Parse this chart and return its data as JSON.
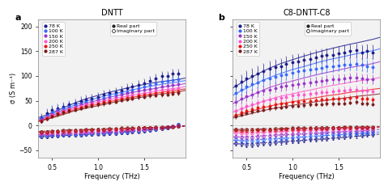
{
  "title_a": "DNTT",
  "title_b": "C8-DNTT-C8",
  "xlabel": "Frequency (THz)",
  "ylabel": "σ (S m⁻¹)",
  "label_a": "a",
  "label_b": "b",
  "ylim": [
    -65,
    215
  ],
  "xlim": [
    0.35,
    1.95
  ],
  "yticks": [
    -50,
    0,
    50,
    100,
    150,
    200
  ],
  "xticks": [
    0.5,
    1.0,
    1.5
  ],
  "temperatures": [
    "78 K",
    "100 K",
    "150 K",
    "200 K",
    "250 K",
    "287 K"
  ],
  "colors": [
    "#1a1a8c",
    "#3366ff",
    "#9933cc",
    "#ff55cc",
    "#ee1111",
    "#7a1a1a"
  ],
  "freq_points": [
    0.38,
    0.44,
    0.5,
    0.56,
    0.62,
    0.68,
    0.75,
    0.81,
    0.87,
    0.93,
    1.0,
    1.06,
    1.12,
    1.19,
    1.25,
    1.31,
    1.37,
    1.44,
    1.5,
    1.56,
    1.62,
    1.69,
    1.75,
    1.81,
    1.87
  ],
  "freq_fit": [
    0.35,
    0.45,
    0.55,
    0.65,
    0.75,
    0.87,
    1.0,
    1.12,
    1.25,
    1.37,
    1.5,
    1.62,
    1.75,
    1.87,
    1.95
  ],
  "panel_a": {
    "real_data": [
      [
        15,
        25,
        31,
        35,
        38,
        42,
        45,
        50,
        52,
        55,
        58,
        62,
        65,
        68,
        70,
        75,
        78,
        82,
        85,
        90,
        95,
        100,
        100,
        105,
        105
      ],
      [
        13,
        20,
        27,
        32,
        35,
        38,
        41,
        45,
        48,
        50,
        53,
        56,
        60,
        63,
        65,
        68,
        72,
        75,
        78,
        82,
        85,
        88,
        90,
        92,
        93
      ],
      [
        12,
        18,
        24,
        29,
        32,
        35,
        38,
        42,
        45,
        48,
        51,
        53,
        56,
        58,
        62,
        65,
        68,
        70,
        72,
        74,
        76,
        78,
        80,
        82,
        83
      ],
      [
        10,
        16,
        22,
        27,
        30,
        33,
        36,
        39,
        42,
        44,
        47,
        50,
        52,
        55,
        57,
        60,
        62,
        64,
        66,
        68,
        70,
        72,
        73,
        74,
        75
      ],
      [
        10,
        15,
        20,
        25,
        28,
        31,
        34,
        37,
        40,
        42,
        44,
        47,
        49,
        51,
        54,
        56,
        58,
        60,
        62,
        63,
        65,
        66,
        67,
        68,
        69
      ],
      [
        9,
        14,
        19,
        23,
        26,
        29,
        32,
        35,
        38,
        40,
        42,
        44,
        46,
        48,
        51,
        53,
        55,
        57,
        58,
        60,
        61,
        62,
        63,
        64,
        65
      ]
    ],
    "imag_data": [
      [
        -22,
        -22,
        -21,
        -21,
        -20,
        -20,
        -19,
        -19,
        -18,
        -18,
        -17,
        -17,
        -16,
        -16,
        -15,
        -14,
        -13,
        -12,
        -11,
        -10,
        -8,
        -6,
        -4,
        -2,
        2
      ],
      [
        -20,
        -20,
        -19,
        -19,
        -18,
        -18,
        -17,
        -17,
        -16,
        -16,
        -15,
        -15,
        -14,
        -14,
        -13,
        -12,
        -11,
        -10,
        -9,
        -8,
        -7,
        -5,
        -3,
        -1,
        2
      ],
      [
        -18,
        -18,
        -17,
        -17,
        -16,
        -16,
        -15,
        -15,
        -14,
        -14,
        -13,
        -13,
        -12,
        -12,
        -11,
        -10,
        -9,
        -8,
        -7,
        -6,
        -5,
        -4,
        -3,
        -2,
        0
      ],
      [
        -16,
        -16,
        -15,
        -15,
        -14,
        -14,
        -13,
        -13,
        -12,
        -12,
        -11,
        -11,
        -10,
        -10,
        -9,
        -8,
        -8,
        -7,
        -7,
        -6,
        -5,
        -4,
        -3,
        -2,
        -1
      ],
      [
        -14,
        -14,
        -13,
        -13,
        -12,
        -12,
        -11,
        -11,
        -10,
        -10,
        -9,
        -9,
        -8,
        -8,
        -7,
        -7,
        -6,
        -6,
        -5,
        -5,
        -4,
        -4,
        -3,
        -3,
        -2
      ],
      [
        -12,
        -12,
        -11,
        -11,
        -10,
        -10,
        -9,
        -9,
        -8,
        -8,
        -7,
        -7,
        -6,
        -6,
        -5,
        -5,
        -5,
        -4,
        -4,
        -4,
        -3,
        -3,
        -3,
        -3,
        -2
      ]
    ],
    "real_fit": [
      [
        16,
        22,
        30,
        38,
        46,
        54,
        61,
        67,
        73,
        78,
        83,
        87,
        90,
        93,
        96
      ],
      [
        13,
        19,
        27,
        34,
        42,
        49,
        56,
        62,
        67,
        72,
        77,
        81,
        85,
        88,
        91
      ],
      [
        11,
        17,
        24,
        31,
        38,
        45,
        51,
        57,
        62,
        67,
        71,
        75,
        79,
        82,
        85
      ],
      [
        10,
        15,
        21,
        28,
        35,
        41,
        47,
        52,
        57,
        61,
        65,
        69,
        73,
        76,
        79
      ],
      [
        9,
        14,
        20,
        26,
        32,
        38,
        43,
        48,
        53,
        57,
        61,
        65,
        69,
        72,
        74
      ],
      [
        8,
        13,
        18,
        24,
        30,
        35,
        40,
        45,
        50,
        54,
        58,
        62,
        65,
        68,
        71
      ]
    ],
    "imag_fit": [
      [
        -23,
        -22,
        -21,
        -20,
        -19,
        -18,
        -17,
        -15,
        -14,
        -12,
        -10,
        -8,
        -6,
        -3,
        -1
      ],
      [
        -21,
        -20,
        -19,
        -18,
        -17,
        -16,
        -15,
        -14,
        -12,
        -11,
        -9,
        -7,
        -5,
        -3,
        -1
      ],
      [
        -19,
        -18,
        -17,
        -16,
        -15,
        -14,
        -13,
        -12,
        -11,
        -9,
        -8,
        -6,
        -4,
        -2,
        0
      ],
      [
        -16,
        -15,
        -14,
        -13,
        -12,
        -11,
        -10,
        -9,
        -8,
        -7,
        -6,
        -5,
        -3,
        -2,
        0
      ],
      [
        -14,
        -13,
        -12,
        -11,
        -10,
        -9,
        -8,
        -8,
        -7,
        -6,
        -5,
        -4,
        -3,
        -2,
        -1
      ],
      [
        -12,
        -11,
        -10,
        -9,
        -8,
        -8,
        -7,
        -6,
        -6,
        -5,
        -4,
        -4,
        -3,
        -2,
        -1
      ]
    ]
  },
  "panel_b": {
    "real_data": [
      [
        80,
        88,
        95,
        100,
        105,
        110,
        115,
        118,
        120,
        125,
        128,
        130,
        132,
        135,
        138,
        140,
        142,
        143,
        145,
        148,
        150,
        152,
        148,
        150,
        148
      ],
      [
        65,
        72,
        78,
        83,
        87,
        91,
        95,
        98,
        101,
        104,
        107,
        109,
        111,
        113,
        115,
        117,
        119,
        120,
        121,
        122,
        123,
        124,
        122,
        120,
        118
      ],
      [
        48,
        54,
        59,
        63,
        67,
        70,
        73,
        76,
        78,
        80,
        82,
        84,
        86,
        87,
        89,
        90,
        92,
        93,
        94,
        95,
        96,
        97,
        95,
        94,
        93
      ],
      [
        30,
        35,
        39,
        43,
        46,
        49,
        52,
        54,
        56,
        58,
        60,
        62,
        63,
        64,
        66,
        67,
        68,
        69,
        70,
        71,
        72,
        73,
        71,
        70,
        69
      ],
      [
        22,
        26,
        30,
        33,
        36,
        38,
        40,
        42,
        44,
        45,
        47,
        48,
        49,
        50,
        51,
        52,
        53,
        54,
        54,
        55,
        56,
        57,
        55,
        54,
        53
      ],
      [
        18,
        22,
        25,
        28,
        30,
        32,
        34,
        36,
        37,
        38,
        39,
        40,
        41,
        42,
        43,
        43,
        44,
        44,
        45,
        45,
        46,
        47,
        45,
        44,
        43
      ]
    ],
    "imag_data": [
      [
        -35,
        -37,
        -38,
        -38,
        -37,
        -36,
        -35,
        -34,
        -33,
        -32,
        -31,
        -30,
        -29,
        -28,
        -27,
        -26,
        -25,
        -24,
        -23,
        -22,
        -21,
        -20,
        -19,
        -18,
        -17
      ],
      [
        -28,
        -30,
        -31,
        -31,
        -30,
        -29,
        -28,
        -27,
        -26,
        -25,
        -24,
        -23,
        -22,
        -21,
        -20,
        -19,
        -18,
        -18,
        -17,
        -17,
        -16,
        -15,
        -15,
        -14,
        -13
      ],
      [
        -22,
        -24,
        -24,
        -24,
        -23,
        -22,
        -21,
        -20,
        -19,
        -18,
        -17,
        -16,
        -16,
        -15,
        -14,
        -14,
        -13,
        -13,
        -12,
        -12,
        -11,
        -11,
        -10,
        -10,
        -9
      ],
      [
        -15,
        -16,
        -16,
        -16,
        -15,
        -14,
        -13,
        -12,
        -12,
        -11,
        -10,
        -10,
        -9,
        -9,
        -8,
        -8,
        -8,
        -7,
        -7,
        -7,
        -7,
        -6,
        -6,
        -6,
        -5
      ],
      [
        -10,
        -11,
        -11,
        -11,
        -10,
        -10,
        -9,
        -9,
        -8,
        -8,
        -7,
        -7,
        -7,
        -6,
        -6,
        -6,
        -6,
        -5,
        -5,
        -5,
        -5,
        -5,
        -4,
        -4,
        -5
      ],
      [
        -7,
        -8,
        -8,
        -8,
        -8,
        -7,
        -7,
        -6,
        -6,
        -6,
        -5,
        -5,
        -5,
        -5,
        -4,
        -4,
        -4,
        -4,
        -4,
        -3,
        -3,
        -3,
        -3,
        -3,
        -3
      ]
    ],
    "real_fit": [
      [
        76,
        87,
        97,
        107,
        116,
        125,
        133,
        140,
        147,
        153,
        159,
        164,
        169,
        174,
        178
      ],
      [
        61,
        71,
        80,
        89,
        97,
        105,
        113,
        119,
        126,
        132,
        137,
        142,
        147,
        151,
        155
      ],
      [
        44,
        53,
        61,
        69,
        77,
        84,
        90,
        96,
        102,
        107,
        112,
        117,
        121,
        125,
        129
      ],
      [
        27,
        34,
        40,
        47,
        53,
        59,
        64,
        69,
        74,
        79,
        83,
        87,
        91,
        94,
        97
      ],
      [
        18,
        24,
        29,
        34,
        39,
        44,
        48,
        52,
        56,
        60,
        63,
        67,
        70,
        73,
        75
      ],
      [
        15,
        20,
        24,
        29,
        33,
        37,
        41,
        44,
        48,
        51,
        54,
        57,
        60,
        62,
        64
      ]
    ],
    "imag_fit": [
      [
        -37,
        -37,
        -36,
        -35,
        -34,
        -33,
        -31,
        -30,
        -28,
        -27,
        -25,
        -23,
        -21,
        -19,
        -17
      ],
      [
        -30,
        -30,
        -29,
        -28,
        -27,
        -26,
        -25,
        -23,
        -22,
        -20,
        -19,
        -17,
        -16,
        -14,
        -13
      ],
      [
        -23,
        -23,
        -22,
        -21,
        -20,
        -19,
        -18,
        -17,
        -16,
        -14,
        -13,
        -12,
        -11,
        -9,
        -8
      ],
      [
        -15,
        -15,
        -14,
        -14,
        -13,
        -12,
        -11,
        -10,
        -10,
        -9,
        -8,
        -7,
        -6,
        -5,
        -4
      ],
      [
        -11,
        -11,
        -10,
        -9,
        -9,
        -8,
        -7,
        -7,
        -6,
        -6,
        -5,
        -5,
        -4,
        -4,
        -3
      ],
      [
        -8,
        -8,
        -7,
        -7,
        -6,
        -6,
        -5,
        -5,
        -5,
        -4,
        -4,
        -3,
        -3,
        -3,
        -2
      ]
    ]
  },
  "errbar_a_real": [
    8,
    7,
    6,
    5,
    5,
    4
  ],
  "errbar_a_imag": [
    3,
    3,
    2,
    2,
    2,
    2
  ],
  "errbar_b_real": [
    14,
    12,
    9,
    7,
    5,
    4
  ],
  "errbar_b_imag": [
    5,
    4,
    3,
    2,
    2,
    2
  ],
  "marker_size": 2.5,
  "bg_color": "#f2f2f2",
  "line_alpha": 0.8
}
